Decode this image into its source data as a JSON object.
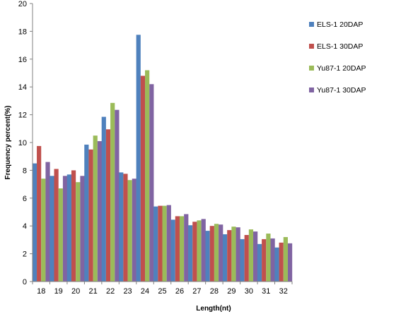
{
  "chart_data": {
    "type": "bar",
    "xlabel": "Length(nt)",
    "ylabel": "Frequency percent(%)",
    "ylim": [
      0,
      20
    ],
    "ytick_step": 2,
    "grid": false,
    "legend_position": "right",
    "categories": [
      "18",
      "19",
      "20",
      "21",
      "22",
      "23",
      "24",
      "25",
      "26",
      "27",
      "28",
      "29",
      "30",
      "31",
      "32"
    ],
    "series": [
      {
        "name": "ELS-1 20DAP",
        "color": "#4F81BD",
        "values": [
          8.5,
          7.6,
          7.7,
          9.85,
          11.85,
          7.85,
          17.75,
          5.4,
          4.45,
          4.05,
          3.65,
          3.4,
          3.05,
          2.7,
          2.45
        ]
      },
      {
        "name": "ELS-1 30DAP",
        "color": "#C0504D",
        "values": [
          9.75,
          8.1,
          8.0,
          9.5,
          10.95,
          7.75,
          14.8,
          5.45,
          4.7,
          4.3,
          4.0,
          3.7,
          3.35,
          3.05,
          2.8
        ]
      },
      {
        "name": "Yu87-1 20DAP",
        "color": "#9BBB59",
        "values": [
          7.4,
          6.7,
          7.15,
          10.5,
          12.85,
          7.3,
          15.2,
          5.45,
          4.7,
          4.4,
          4.15,
          3.95,
          3.75,
          3.45,
          3.2
        ]
      },
      {
        "name": "Yu87-1 30DAP",
        "color": "#8064A2",
        "values": [
          8.6,
          7.6,
          7.6,
          10.1,
          12.35,
          7.4,
          14.2,
          5.5,
          4.85,
          4.5,
          4.1,
          3.9,
          3.6,
          3.1,
          2.75
        ]
      }
    ]
  }
}
